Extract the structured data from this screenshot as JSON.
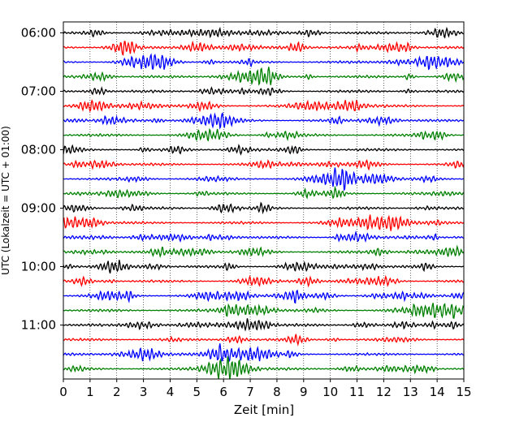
{
  "chart_data": {
    "type": "line",
    "title": "",
    "xlabel": "Zeit  [min]",
    "ylabel": "UTC (Lokalzeit = UTC + 01:00)",
    "xlim": [
      0,
      15
    ],
    "x_ticks": [
      0,
      1,
      2,
      3,
      4,
      5,
      6,
      7,
      8,
      9,
      10,
      11,
      12,
      13,
      14,
      15
    ],
    "y_tick_labels": [
      "06:00",
      "07:00",
      "08:00",
      "09:00",
      "10:00",
      "11:00"
    ],
    "y_tick_trace_index": [
      0,
      4,
      8,
      12,
      16,
      20
    ],
    "trace_count": 24,
    "trace_color_cycle": [
      "#000000",
      "#ff0000",
      "#0000ff",
      "#008000"
    ],
    "grid": "vertical dotted lines at each minute",
    "legend": "none"
  }
}
